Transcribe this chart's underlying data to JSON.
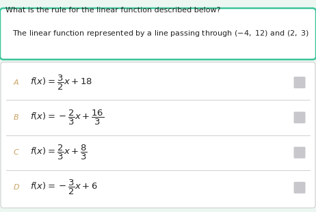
{
  "title": "What is the rule for the linear function described below?",
  "options": [
    {
      "label": "A",
      "formula": "$f(x)=\\dfrac{3}{2}x+18$"
    },
    {
      "label": "B",
      "formula": "$f(x)=-\\dfrac{2}{3}x+\\dfrac{16}{3}$"
    },
    {
      "label": "C",
      "formula": "$f(x)=\\dfrac{2}{3}x+\\dfrac{8}{3}$"
    },
    {
      "label": "D",
      "formula": "$f(x)=-\\dfrac{3}{2}x+6$"
    }
  ],
  "bg_color": "#edf7f2",
  "question_box_border": "#3cc49a",
  "question_box_bg": "#ffffff",
  "options_box_bg": "#ffffff",
  "options_box_border": "#d0d0d0",
  "label_color": "#c8a060",
  "radio_color": "#c8c8cc",
  "title_color": "#222222",
  "formula_color": "#222222",
  "title_fontsize": 8.0,
  "formula_fontsize": 9.5,
  "label_fontsize": 8.0
}
